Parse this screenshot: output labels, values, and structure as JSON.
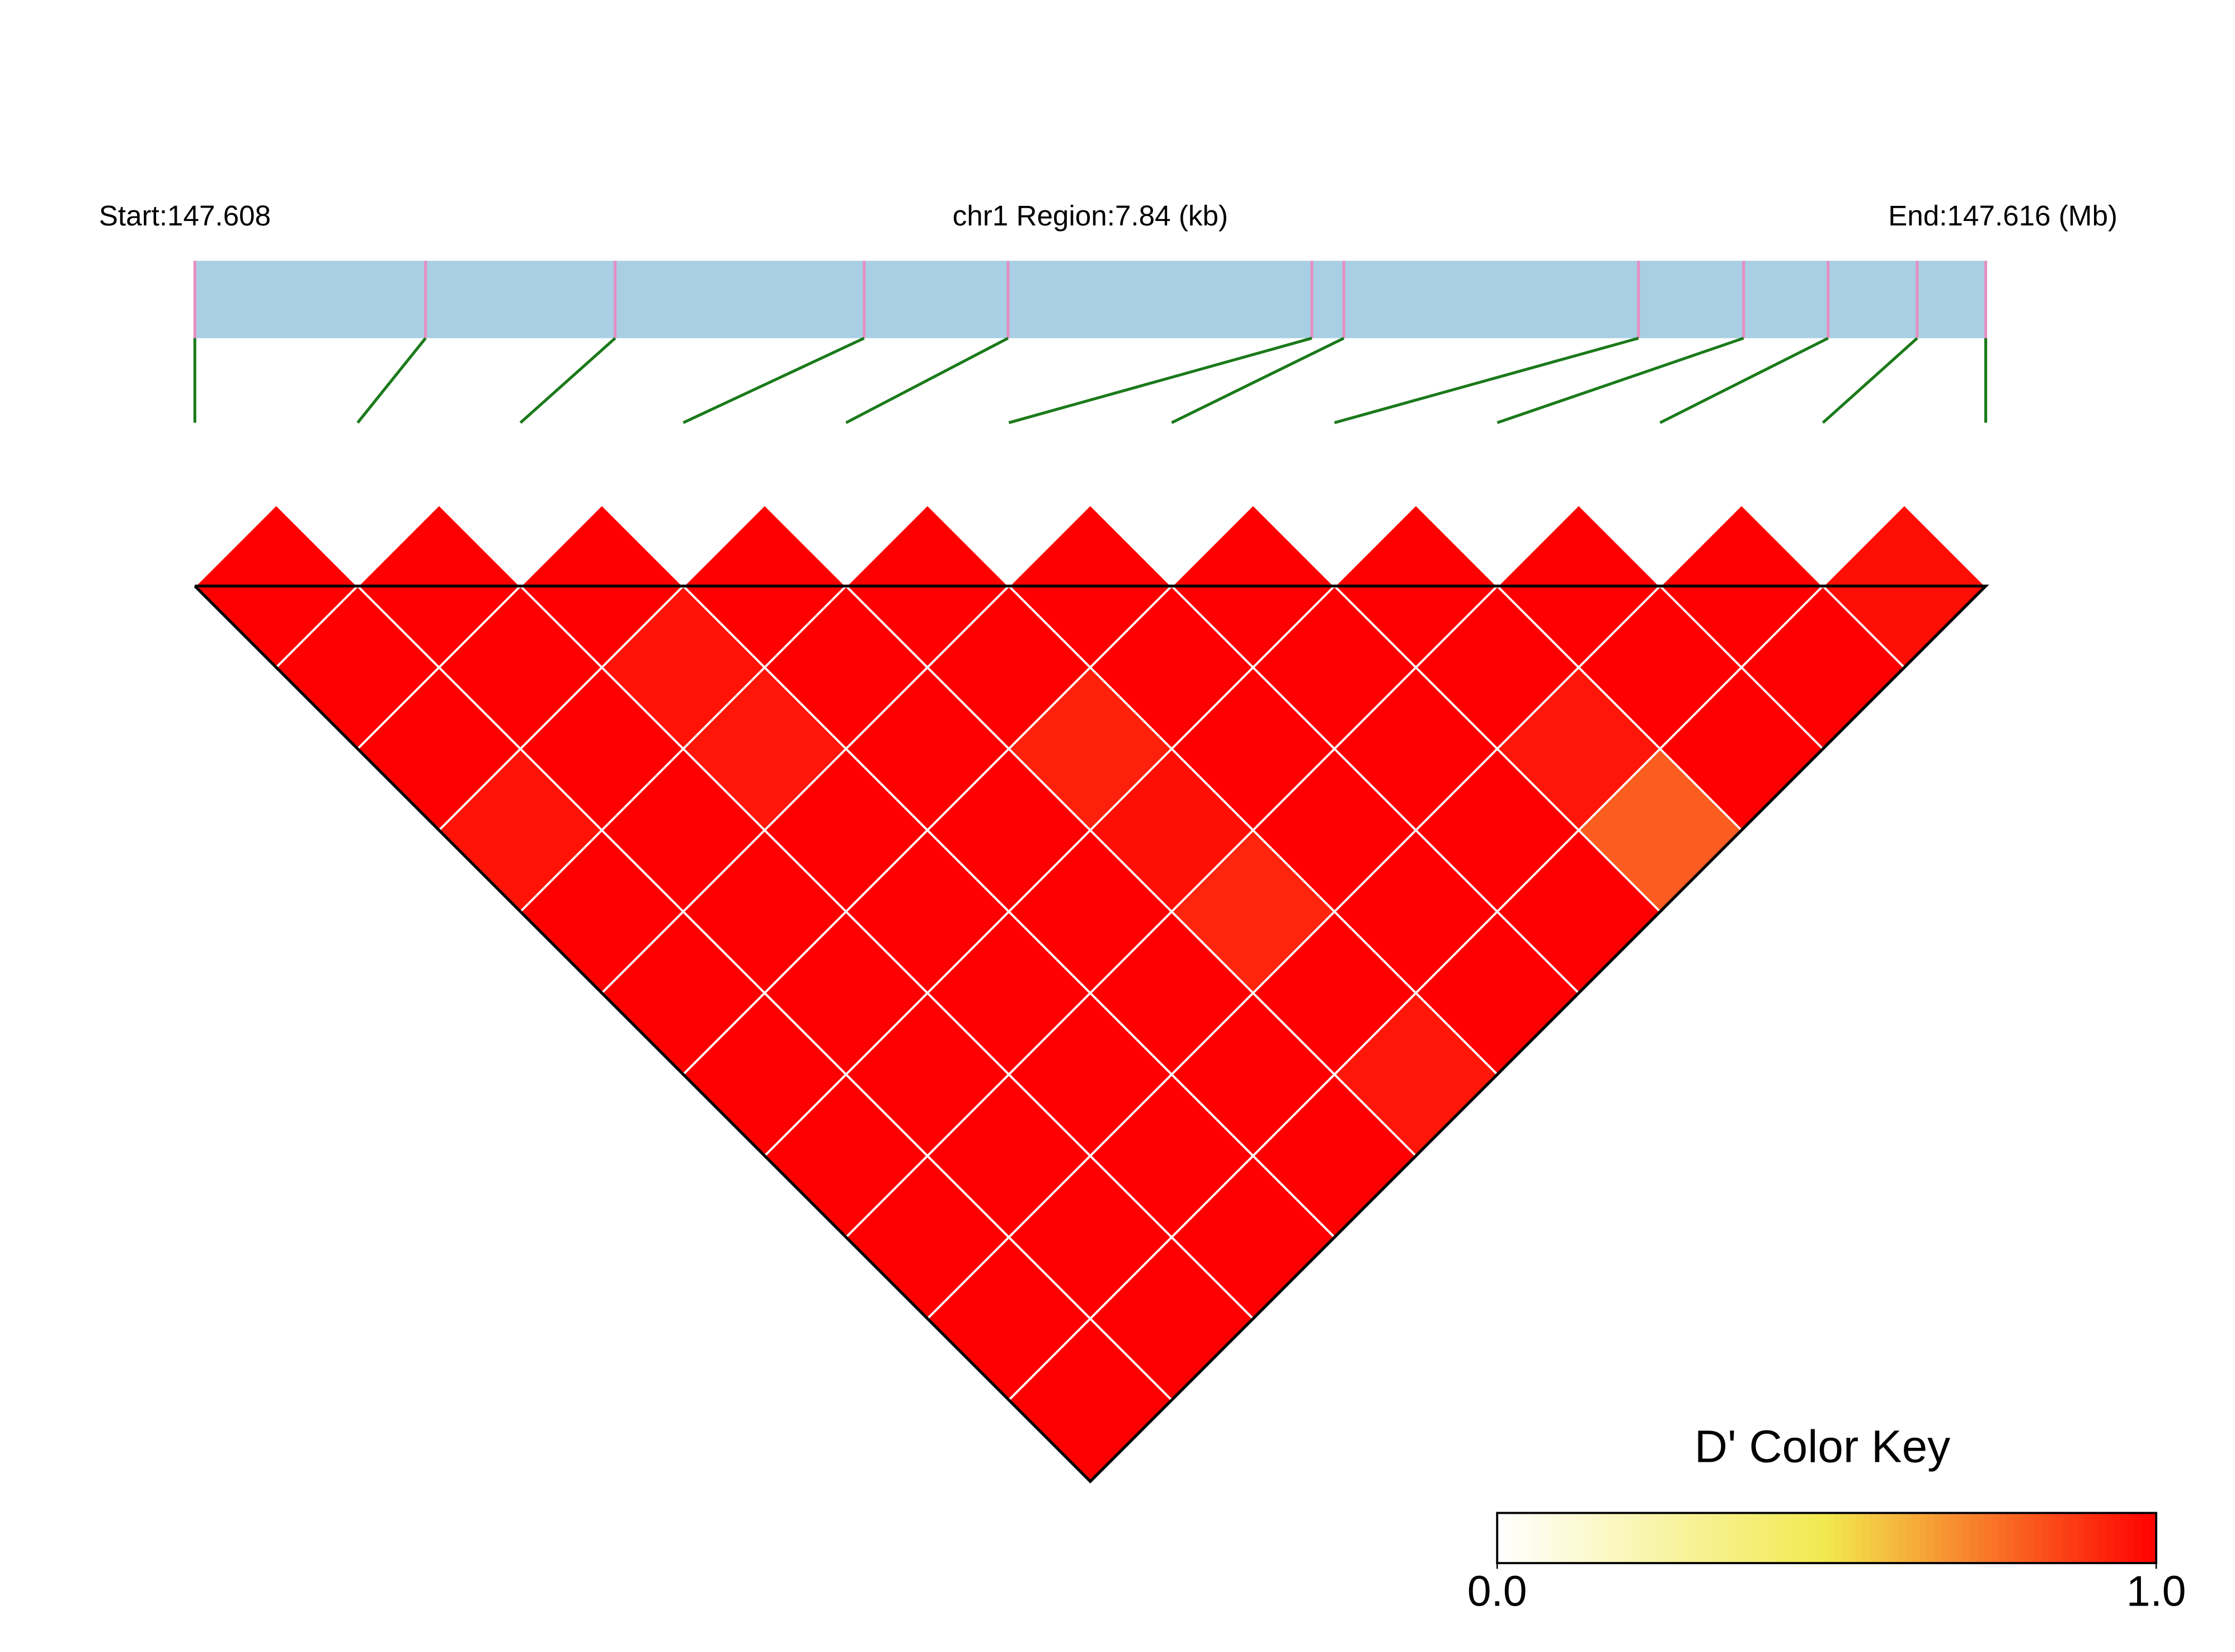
{
  "chart_data": {
    "type": "ld-heatmap",
    "start_label": "Start:147.608",
    "region_label": "chr1 Region:7.84 (kb)",
    "end_label": "End:147.616 (Mb)",
    "x": [
      0,
      1.01,
      1.84,
      2.93,
      3.56,
      4.89,
      5.03,
      6.32,
      6.78,
      7.15,
      7.54,
      7.84
    ],
    "xlim": [
      0,
      7.84
    ],
    "values": [
      [
        1,
        1,
        1,
        0.96,
        1,
        1,
        1,
        1,
        1,
        1,
        1
      ],
      [
        1,
        1,
        1,
        1,
        1,
        1,
        1,
        1,
        1,
        1
      ],
      [
        1,
        0.96,
        0.95,
        1,
        1,
        1,
        1,
        1,
        1
      ],
      [
        1,
        1,
        1,
        1,
        1,
        1,
        1,
        1
      ],
      [
        1,
        1,
        0.93,
        0.97,
        0.92,
        1,
        0.95
      ],
      [
        1,
        1,
        1,
        1,
        1,
        1
      ],
      [
        1,
        1,
        1,
        1,
        1
      ],
      [
        1,
        1,
        0.95,
        0.8
      ],
      [
        1,
        1,
        1
      ],
      [
        1,
        1
      ],
      [
        0.97
      ]
    ],
    "legend_title": "D' Color Key",
    "color_scale": [
      "#ffffff",
      "#f2e94e",
      "#ff0000"
    ],
    "colorlim": [
      0,
      1
    ],
    "colorticks": [
      {
        "value": 0,
        "label": "0.0"
      },
      {
        "value": 1,
        "label": "1.0"
      }
    ],
    "region_color": "#a8cfe3",
    "marker_color": "#e48fc3",
    "connector_color": "#1a7a1a"
  }
}
